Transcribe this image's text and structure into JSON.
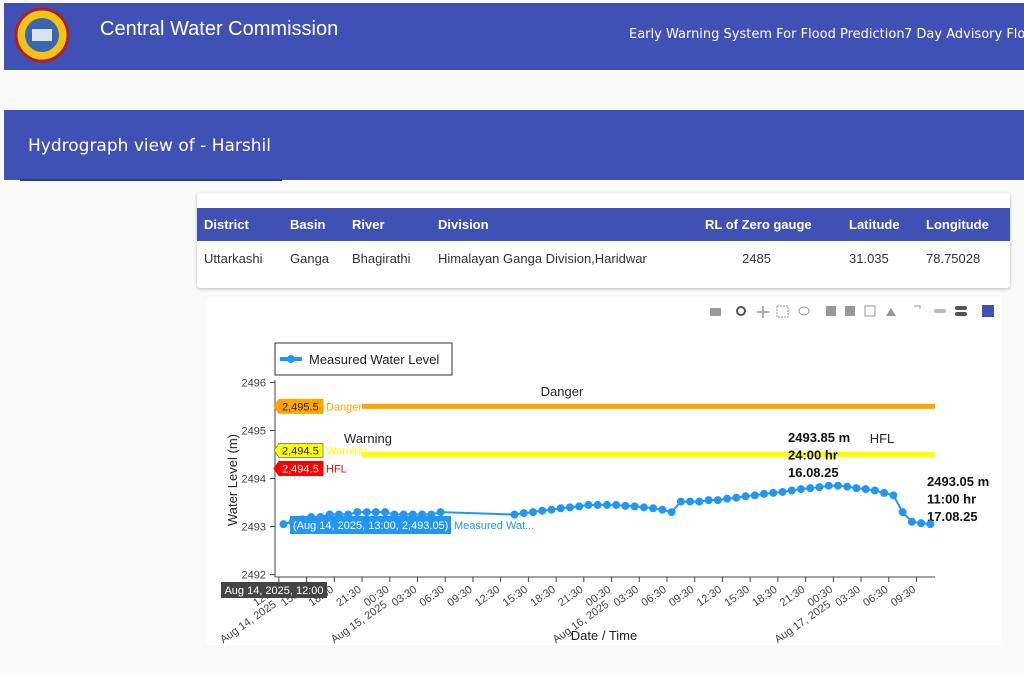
{
  "header": {
    "title": "Central Water Commission",
    "nav": [
      "Early Warning System For Flood Prediction",
      "7 Day Advisory Floo"
    ]
  },
  "section": {
    "title": "Hydrograph view of - Harshil"
  },
  "table": {
    "headers": [
      "District",
      "Basin",
      "River",
      "Division",
      "RL of Zero gauge",
      "Latitude",
      "Longitude"
    ],
    "rows": [
      [
        "Uttarkashi",
        "Ganga",
        "Bhagirathi",
        "Himalayan Ganga Division,Haridwar",
        "2485",
        "31.035",
        "78.75028"
      ]
    ]
  },
  "chart_data": {
    "type": "line",
    "y_label": "Water Level (m)",
    "x_label": "Date / Time",
    "ylim": [
      2491.95,
      2496.05
    ],
    "yticks": [
      2492,
      2493,
      2494,
      2495,
      2496
    ],
    "xlim": [
      "2025-08-14 12:05",
      "2025-08-17 11:30"
    ],
    "xticks": [
      {
        "value": "2025-08-14 12:30",
        "label": "12:30",
        "date": "Aug 14, 2025"
      },
      {
        "value": "2025-08-14 15:30",
        "label": "15:30"
      },
      {
        "value": "2025-08-14 18:30",
        "label": "18:30"
      },
      {
        "value": "2025-08-14 21:30",
        "label": "21:30"
      },
      {
        "value": "2025-08-15 00:30",
        "label": "00:30",
        "date": "Aug 15, 2025"
      },
      {
        "value": "2025-08-15 03:30",
        "label": "03:30"
      },
      {
        "value": "2025-08-15 06:30",
        "label": "06:30"
      },
      {
        "value": "2025-08-15 09:30",
        "label": "09:30"
      },
      {
        "value": "2025-08-15 12:30",
        "label": "12:30"
      },
      {
        "value": "2025-08-15 15:30",
        "label": "15:30"
      },
      {
        "value": "2025-08-15 18:30",
        "label": "18:30"
      },
      {
        "value": "2025-08-15 21:30",
        "label": "21:30"
      },
      {
        "value": "2025-08-16 00:30",
        "label": "00:30",
        "date": "Aug 16, 2025"
      },
      {
        "value": "2025-08-16 03:30",
        "label": "03:30"
      },
      {
        "value": "2025-08-16 06:30",
        "label": "06:30"
      },
      {
        "value": "2025-08-16 09:30",
        "label": "09:30"
      },
      {
        "value": "2025-08-16 12:30",
        "label": "12:30"
      },
      {
        "value": "2025-08-16 15:30",
        "label": "15:30"
      },
      {
        "value": "2025-08-16 18:30",
        "label": "18:30"
      },
      {
        "value": "2025-08-16 21:30",
        "label": "21:30"
      },
      {
        "value": "2025-08-17 00:30",
        "label": "00:30",
        "date": "Aug 17, 2025"
      },
      {
        "value": "2025-08-17 03:30",
        "label": "03:30"
      },
      {
        "value": "2025-08-17 06:30",
        "label": "06:30"
      },
      {
        "value": "2025-08-17 09:30",
        "label": "09:30"
      }
    ],
    "x": [
      "2025-08-14 13:00",
      "2025-08-14 14:00",
      "2025-08-14 15:00",
      "2025-08-14 16:00",
      "2025-08-14 17:00",
      "2025-08-14 18:00",
      "2025-08-14 19:00",
      "2025-08-14 20:00",
      "2025-08-14 21:00",
      "2025-08-14 22:00",
      "2025-08-14 23:00",
      "2025-08-15 00:00",
      "2025-08-15 01:00",
      "2025-08-15 02:00",
      "2025-08-15 03:00",
      "2025-08-15 04:00",
      "2025-08-15 05:00",
      "2025-08-15 06:00",
      "2025-08-15 14:00",
      "2025-08-15 15:00",
      "2025-08-15 16:00",
      "2025-08-15 17:00",
      "2025-08-15 18:00",
      "2025-08-15 19:00",
      "2025-08-15 20:00",
      "2025-08-15 21:00",
      "2025-08-15 22:00",
      "2025-08-15 23:00",
      "2025-08-16 00:00",
      "2025-08-16 01:00",
      "2025-08-16 02:00",
      "2025-08-16 03:00",
      "2025-08-16 04:00",
      "2025-08-16 05:00",
      "2025-08-16 06:00",
      "2025-08-16 07:00",
      "2025-08-16 08:00",
      "2025-08-16 09:00",
      "2025-08-16 10:00",
      "2025-08-16 11:00",
      "2025-08-16 12:00",
      "2025-08-16 13:00",
      "2025-08-16 14:00",
      "2025-08-16 15:00",
      "2025-08-16 16:00",
      "2025-08-16 17:00",
      "2025-08-16 18:00",
      "2025-08-16 19:00",
      "2025-08-16 20:00",
      "2025-08-16 21:00",
      "2025-08-16 22:00",
      "2025-08-16 23:00",
      "2025-08-17 00:00",
      "2025-08-17 01:00",
      "2025-08-17 02:00",
      "2025-08-17 03:00",
      "2025-08-17 04:00",
      "2025-08-17 05:00",
      "2025-08-17 06:00",
      "2025-08-17 07:00",
      "2025-08-17 08:00",
      "2025-08-17 09:00",
      "2025-08-17 10:00",
      "2025-08-17 11:00"
    ],
    "series": [
      {
        "name": "Measured Water Level",
        "color": "#2196f3",
        "values": [
          2493.05,
          2493.1,
          2493.15,
          2493.2,
          2493.2,
          2493.25,
          2493.25,
          2493.25,
          2493.3,
          2493.3,
          2493.3,
          2493.3,
          2493.25,
          2493.25,
          2493.25,
          2493.25,
          2493.25,
          2493.3,
          2493.25,
          2493.28,
          2493.3,
          2493.33,
          2493.35,
          2493.38,
          2493.4,
          2493.42,
          2493.45,
          2493.45,
          2493.45,
          2493.45,
          2493.43,
          2493.42,
          2493.4,
          2493.38,
          2493.35,
          2493.3,
          2493.52,
          2493.52,
          2493.52,
          2493.55,
          2493.55,
          2493.58,
          2493.6,
          2493.63,
          2493.65,
          2493.68,
          2493.7,
          2493.72,
          2493.75,
          2493.78,
          2493.8,
          2493.82,
          2493.85,
          2493.85,
          2493.83,
          2493.8,
          2493.78,
          2493.75,
          2493.7,
          2493.65,
          2493.3,
          2493.1,
          2493.07,
          2493.05
        ]
      }
    ],
    "thresholds": [
      {
        "name": "Danger",
        "value": 2495.5,
        "label": "2,495.5",
        "color": "#ffa500"
      },
      {
        "name": "Warning",
        "value": 2494.5,
        "label": "2,494.5",
        "color": "#ffff00"
      },
      {
        "name": "HFL",
        "value": 2494.5,
        "label": "2,494.5",
        "color": "#ff0000"
      }
    ],
    "annotations": [
      "Danger",
      "Warning",
      "HFL"
    ],
    "point_annotations": [
      [
        "2493.85 m",
        "24:00 hr",
        "16.08.25"
      ],
      [
        "2493.05 m",
        "11:00 hr",
        "17.08.25"
      ]
    ],
    "hover": {
      "point_label": "(Aug 14, 2025, 13:00, 2,493.05)",
      "series_label": "Measured Wat...",
      "x_label": "Aug 14, 2025, 12:00"
    }
  }
}
